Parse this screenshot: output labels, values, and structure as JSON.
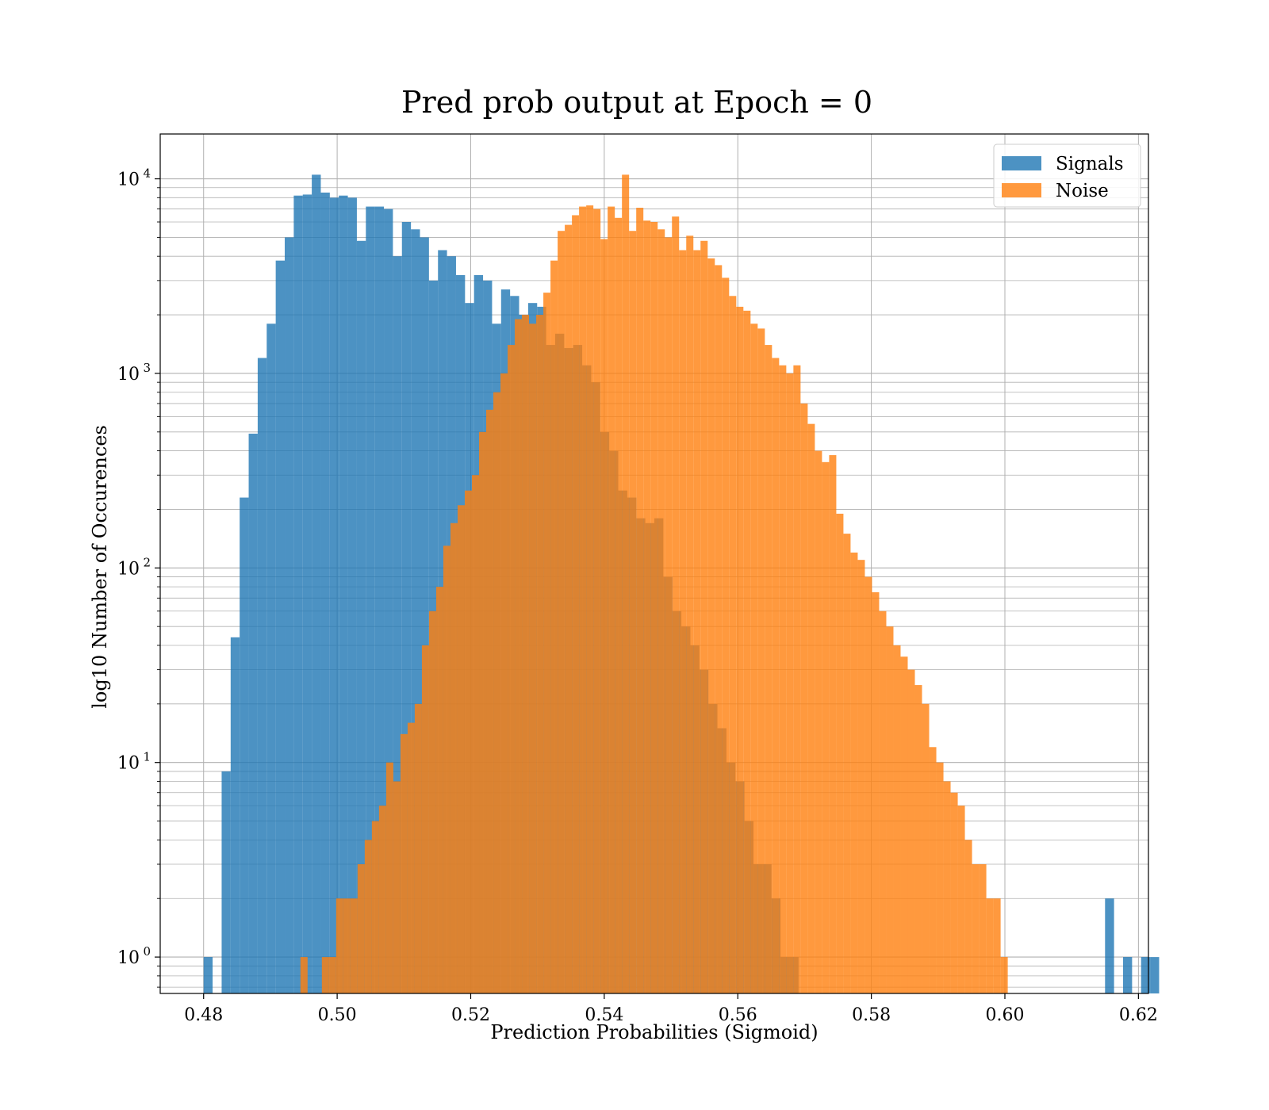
{
  "chart_data": {
    "type": "bar",
    "title": "Pred prob output at Epoch = 0",
    "xlabel": "Prediction Probabilities (Sigmoid)",
    "ylabel": "log10 Number of Occurences",
    "xlim": [
      0.4735,
      0.6215
    ],
    "ylim": [
      0.65,
      17000
    ],
    "yscale": "log",
    "grid": true,
    "legend_position": "top-right",
    "xticks": [
      {
        "value": 0.48,
        "label": "0.48"
      },
      {
        "value": 0.5,
        "label": "0.50"
      },
      {
        "value": 0.52,
        "label": "0.52"
      },
      {
        "value": 0.54,
        "label": "0.54"
      },
      {
        "value": 0.56,
        "label": "0.56"
      },
      {
        "value": 0.58,
        "label": "0.58"
      },
      {
        "value": 0.6,
        "label": "0.60"
      },
      {
        "value": 0.62,
        "label": "0.62"
      }
    ],
    "yticks": [
      {
        "value": 1,
        "base": "10",
        "exp": "0"
      },
      {
        "value": 10,
        "base": "10",
        "exp": "1"
      },
      {
        "value": 100,
        "base": "10",
        "exp": "2"
      },
      {
        "value": 1000,
        "base": "10",
        "exp": "3"
      },
      {
        "value": 10000,
        "base": "10",
        "exp": "4"
      }
    ],
    "series": [
      {
        "name": "Signals",
        "color": "#1f77b4",
        "opacity": 0.8,
        "bin_start": 0.48,
        "bin_width": 0.00135,
        "values": [
          1,
          0,
          9,
          44,
          230,
          490,
          1200,
          1800,
          3800,
          5000,
          8200,
          8300,
          10500,
          8500,
          8000,
          8200,
          8000,
          4800,
          7200,
          7200,
          7000,
          4000,
          6000,
          5500,
          5000,
          3000,
          4300,
          4000,
          3200,
          2300,
          3200,
          3000,
          1800,
          2700,
          2500,
          2000,
          2300,
          2200,
          1400,
          1600,
          1350,
          1400,
          1100,
          900,
          500,
          400,
          250,
          230,
          180,
          170,
          180,
          90,
          60,
          50,
          40,
          30,
          20,
          15,
          10,
          8,
          5,
          3,
          3,
          2,
          1,
          1,
          0,
          0,
          0,
          0,
          0,
          0,
          0,
          0,
          0,
          0,
          0,
          0,
          0,
          0,
          0,
          0,
          0,
          0,
          0,
          0,
          0,
          0,
          0,
          0,
          0,
          0,
          0,
          0,
          0,
          0,
          0,
          0,
          0,
          0,
          2,
          0,
          1,
          0,
          1,
          1,
          0,
          0,
          0,
          0
        ]
      },
      {
        "name": "Noise",
        "color": "#ff7f0e",
        "opacity": 0.8,
        "bin_start": 0.4945,
        "bin_width": 0.00107,
        "values": [
          1,
          0,
          0,
          1,
          1,
          2,
          2,
          2,
          3,
          4,
          5,
          6,
          10,
          8,
          14,
          16,
          20,
          40,
          60,
          80,
          130,
          170,
          210,
          250,
          300,
          500,
          650,
          800,
          1000,
          1400,
          1900,
          2000,
          1800,
          2000,
          2600,
          3800,
          5400,
          5800,
          6500,
          7200,
          7300,
          7000,
          4900,
          7200,
          6300,
          10500,
          5400,
          7100,
          6100,
          6000,
          5500,
          5000,
          6400,
          4300,
          5100,
          4300,
          4800,
          3900,
          3600,
          3100,
          2500,
          2200,
          2100,
          1800,
          1700,
          1400,
          1200,
          1100,
          1000,
          1100,
          700,
          550,
          400,
          350,
          380,
          190,
          150,
          120,
          110,
          90,
          75,
          60,
          50,
          40,
          35,
          30,
          25,
          20,
          12,
          10,
          8,
          7,
          6,
          4,
          3,
          3,
          2,
          2,
          1
        ]
      }
    ]
  }
}
